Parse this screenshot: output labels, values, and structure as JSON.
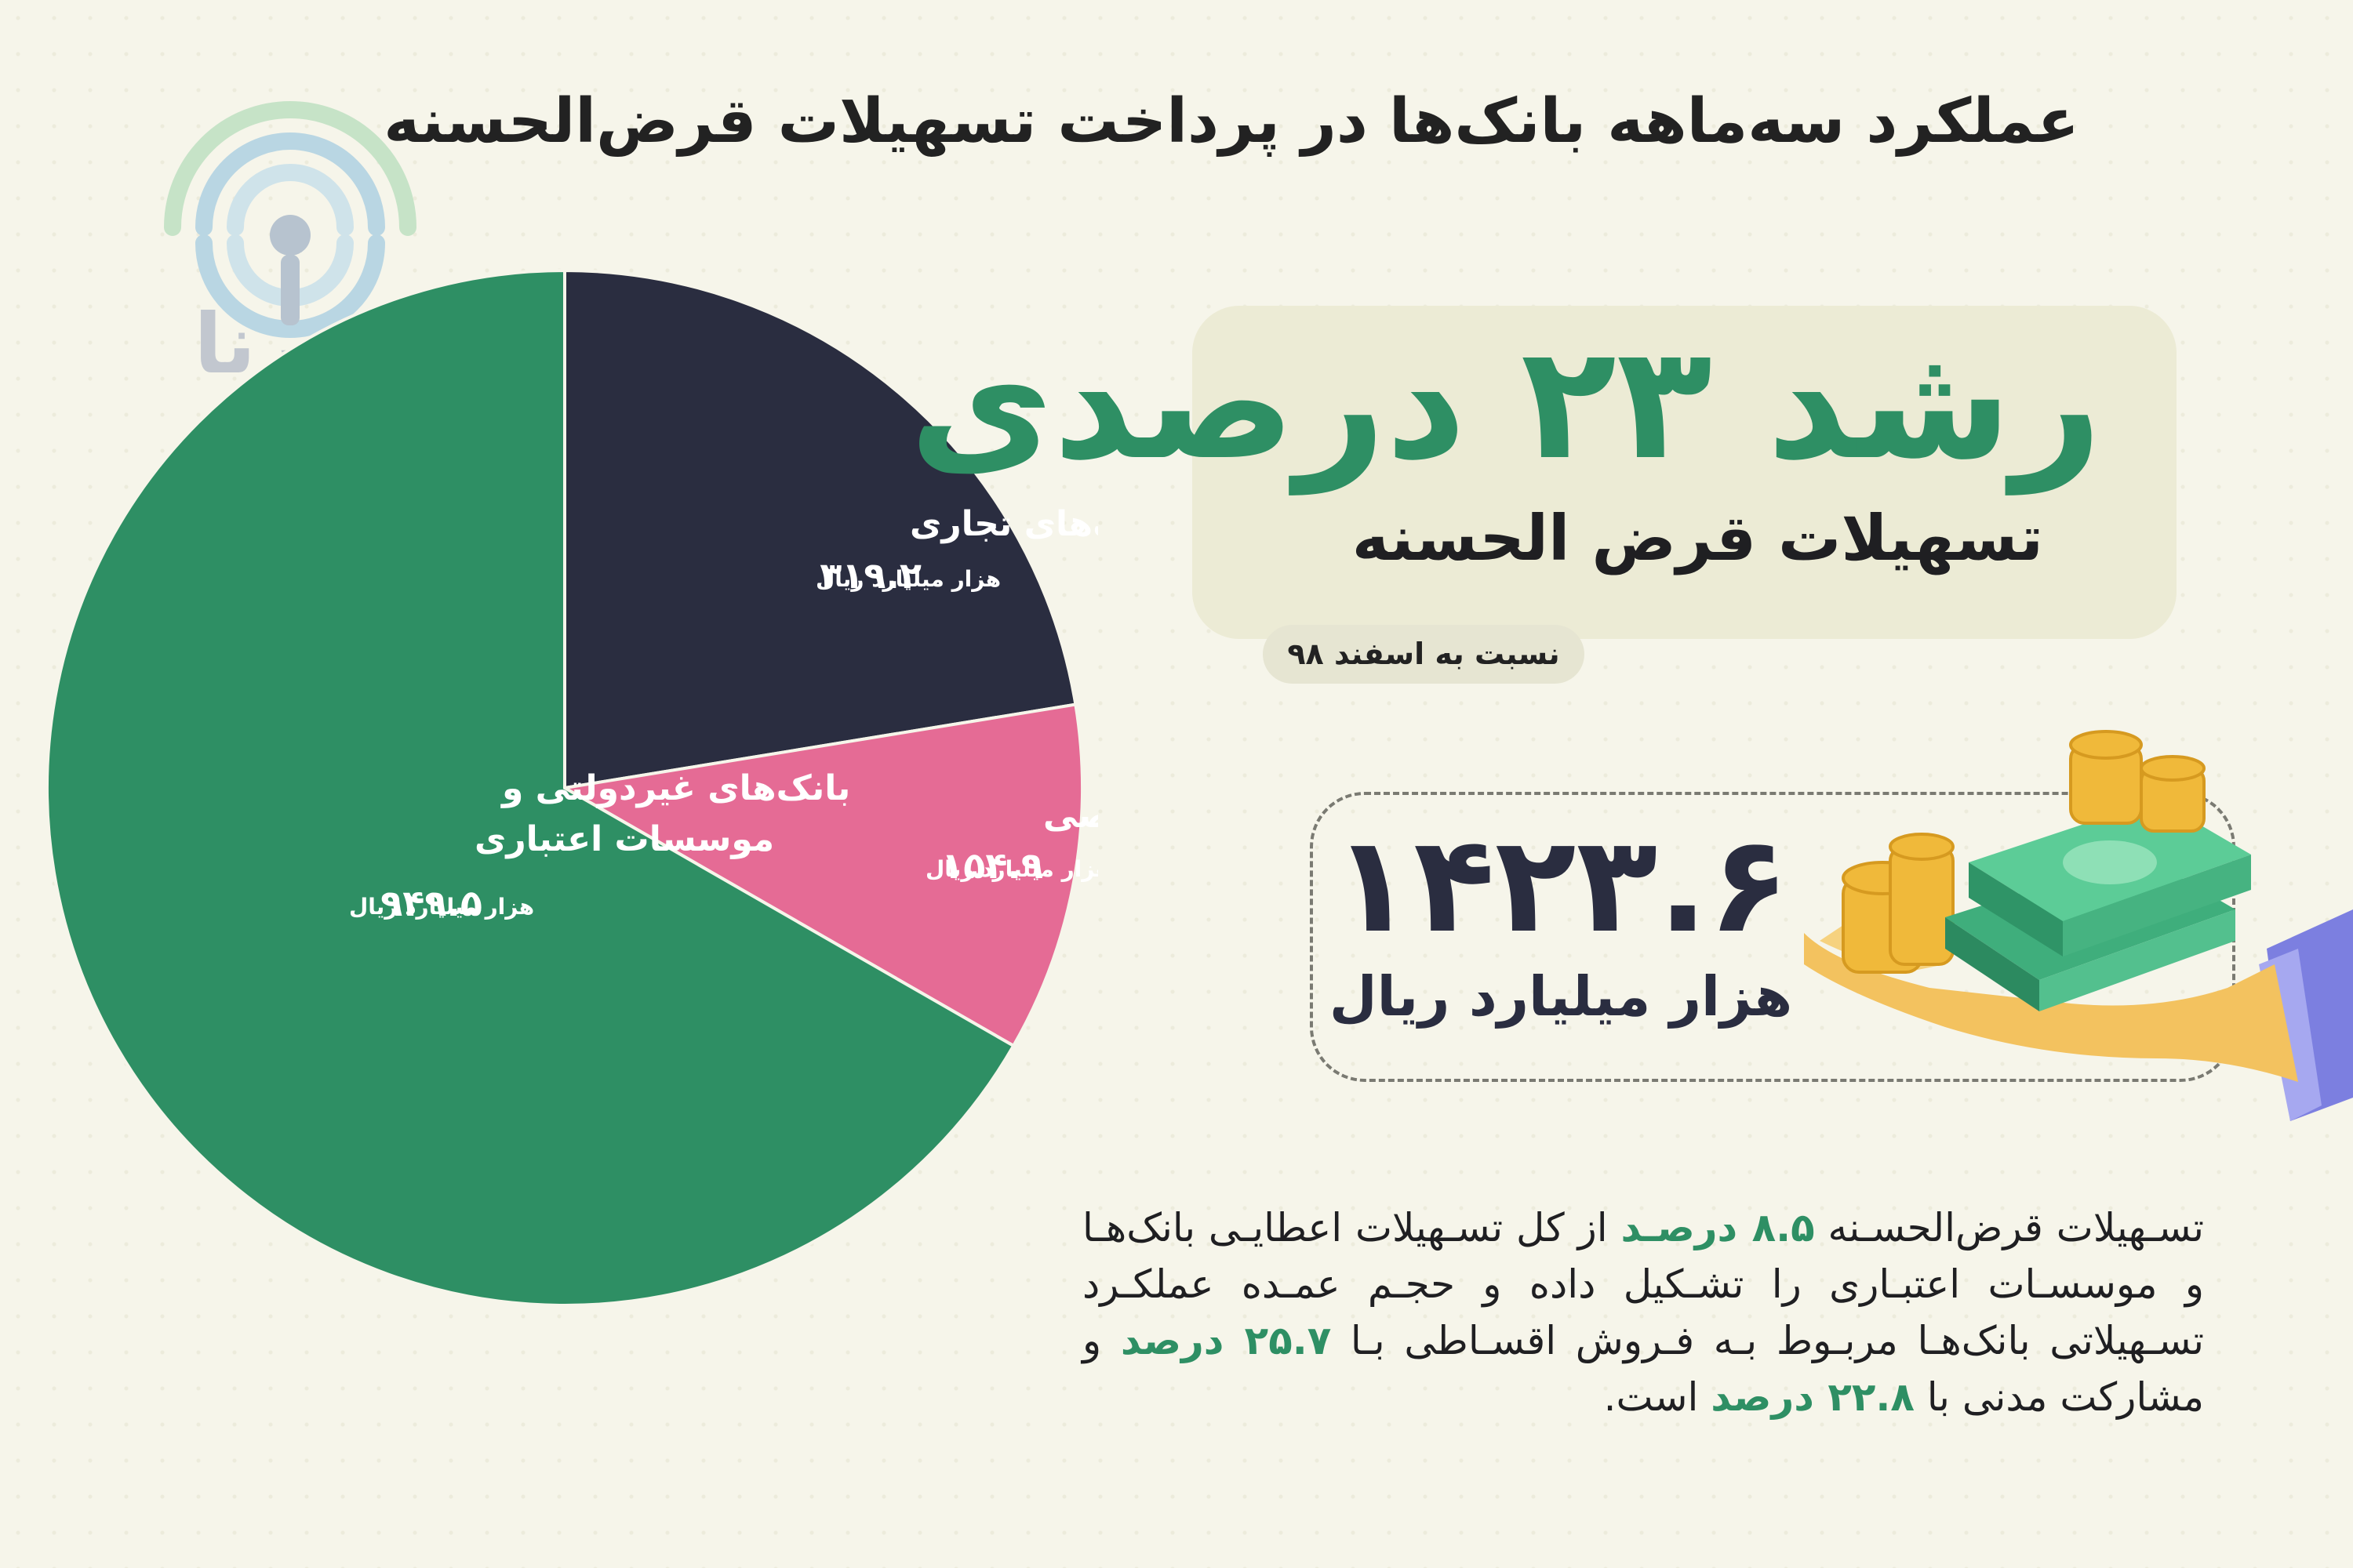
{
  "title": "عملکرد سه‌ماهه بانک‌ها در پرداخت تسهیلات قرض‌الحسنه",
  "logo": {
    "text": "ایـرنا"
  },
  "colors": {
    "green": "#2e8f64",
    "navy": "#2a2d40",
    "pink": "#e56b95",
    "background": "#f6f5ea"
  },
  "chart_data": {
    "type": "pie",
    "unit": "هزار میلیارد ریال",
    "slices": [
      {
        "label": "بانک‌های تجاری",
        "value": 319.2,
        "value_text": "۳۱۹.۲",
        "color": "#2a2d40"
      },
      {
        "label": "بانک‌های تخصصی",
        "value": 154.9,
        "value_text": "۱۵۴.۹",
        "color": "#e56b95"
      },
      {
        "label": "بانک‌های غیردولتی و موسسات اعتباری",
        "label_lines": [
          "بانک‌های غیردولتی و",
          "موسسات اعتباری"
        ],
        "value": 949.5,
        "value_text": "۹۴۹.۵",
        "color": "#2e8f64"
      }
    ]
  },
  "growth": {
    "headline": "رشد ۲۳ درصدی",
    "subtitle": "تسهیلات قرض الحسنه",
    "note": "نسبت به اسفند ۹۸"
  },
  "total": {
    "value_text": "۱۴۲۳.۶",
    "unit": "هزار میلیارد ریال"
  },
  "description": {
    "p1": "تسـهیلات قرض‌الحسـنه ",
    "h1": "۸.۵ درصـد",
    "p2": " از کل تسـهیلات اعطایـی بانک‌هـا و موسسـات اعتبـاری را تشـکیل داده و حجـم عمـده عملکـرد تسـهیلاتی بانک‌هـا مربـوط بـه فـروش اقسـاطی بـا ",
    "h2": "۲۵.۷ درصد",
    "p3": " و مشارکت مدنی با ",
    "h3": "۲۲.۸ درصد",
    "p4": " است."
  }
}
